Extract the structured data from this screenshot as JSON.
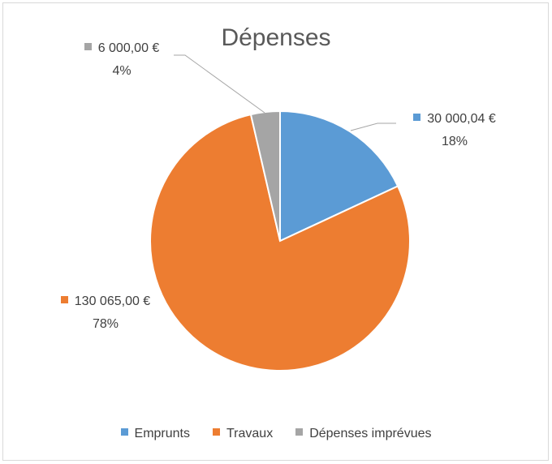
{
  "chart_data": {
    "type": "pie",
    "title": "Dépenses",
    "categories": [
      "Emprunts",
      "Travaux",
      "Dépenses imprévues"
    ],
    "values": [
      30000.04,
      130065.0,
      6000.0
    ],
    "value_labels": [
      "30 000,04 €",
      "130 065,00 €",
      "6 000,00 €"
    ],
    "percentages": [
      18,
      78,
      4
    ],
    "percentage_labels": [
      "18%",
      "78%",
      "4%"
    ],
    "colors": [
      "#5b9bd5",
      "#ed7d31",
      "#a5a5a5"
    ],
    "legend": "bottom"
  }
}
